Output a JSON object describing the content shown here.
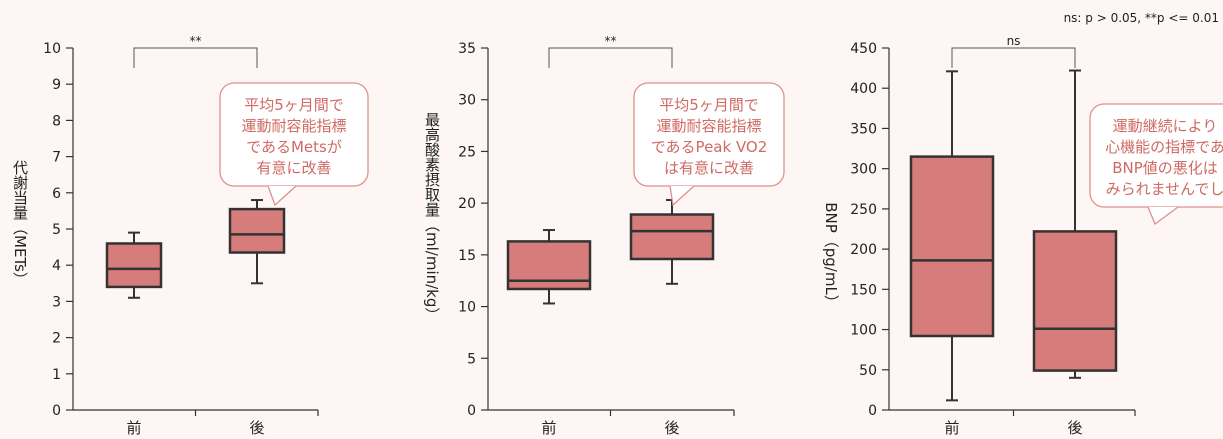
{
  "note": "ns: p > 0.05, **p <= 0.01",
  "colors": {
    "box_fill": "#d67c7a",
    "box_stroke": "#333333",
    "callout_stroke": "#e0908a",
    "callout_text": "#d06a64"
  },
  "chart_data": [
    {
      "type": "box",
      "ylabel": "代謝当量（METs）",
      "ylim": [
        0,
        10
      ],
      "yticks": [
        "0",
        "1",
        "2",
        "3",
        "4",
        "5",
        "6",
        "7",
        "8",
        "9",
        "10"
      ],
      "categories": [
        "前",
        "後"
      ],
      "boxes": [
        {
          "name": "前",
          "min": 3.1,
          "q1": 3.4,
          "median": 3.9,
          "q3": 4.6,
          "max": 4.9
        },
        {
          "name": "後",
          "min": 3.5,
          "q1": 4.35,
          "median": 4.85,
          "q3": 5.55,
          "max": 5.8
        }
      ],
      "significance": "**",
      "callout": [
        "平均5ヶ月間で",
        "運動耐容能指標",
        "であるMetsが",
        "有意に改善"
      ]
    },
    {
      "type": "box",
      "ylabel": "最高酸素摂取量（ml/min/kg）",
      "ylim": [
        0,
        35
      ],
      "yticks": [
        "0",
        "5",
        "10",
        "15",
        "20",
        "25",
        "30",
        "35"
      ],
      "categories": [
        "前",
        "後"
      ],
      "boxes": [
        {
          "name": "前",
          "min": 10.3,
          "q1": 11.7,
          "median": 12.5,
          "q3": 16.3,
          "max": 17.4
        },
        {
          "name": "後",
          "min": 12.2,
          "q1": 14.6,
          "median": 17.3,
          "q3": 18.9,
          "max": 20.3
        }
      ],
      "significance": "**",
      "callout": [
        "平均5ヶ月間で",
        "運動耐容能指標",
        "であるPeak VO2",
        "は有意に改善"
      ]
    },
    {
      "type": "box",
      "ylabel": "BNP（pg/mL）",
      "ylim": [
        0,
        450
      ],
      "yticks": [
        "0",
        "50",
        "100",
        "150",
        "200",
        "250",
        "300",
        "350",
        "400",
        "450"
      ],
      "categories": [
        "前",
        "後"
      ],
      "boxes": [
        {
          "name": "前",
          "min": 12,
          "q1": 92,
          "median": 186,
          "q3": 315,
          "max": 421
        },
        {
          "name": "後",
          "min": 40,
          "q1": 49,
          "median": 101,
          "q3": 222,
          "max": 422
        }
      ],
      "significance": "ns",
      "callout": [
        "運動継続により",
        "心機能の指標であ",
        "BNP値の悪化は",
        "みられませんでし"
      ]
    }
  ]
}
